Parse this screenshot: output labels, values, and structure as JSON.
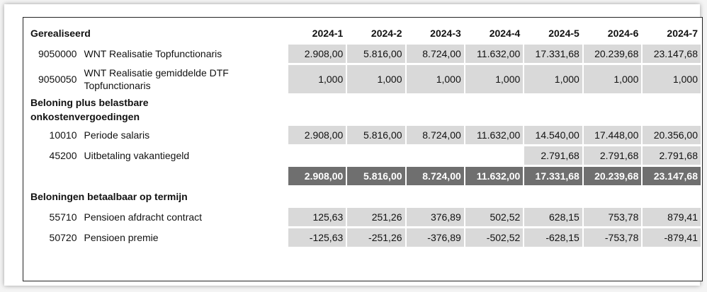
{
  "title": "Gerealiseerd",
  "periods": [
    "2024-1",
    "2024-2",
    "2024-3",
    "2024-4",
    "2024-5",
    "2024-6",
    "2024-7"
  ],
  "rows": [
    {
      "code": "9050000",
      "desc": "WNT Realisatie Topfunctionaris",
      "values": [
        "2.908,00",
        "5.816,00",
        "8.724,00",
        "11.632,00",
        "17.331,68",
        "20.239,68",
        "23.147,68"
      ]
    },
    {
      "code": "9050050",
      "desc": "WNT Realisatie gemiddelde DTF Topfunctionaris",
      "values": [
        "1,000",
        "1,000",
        "1,000",
        "1,000",
        "1,000",
        "1,000",
        "1,000"
      ]
    }
  ],
  "section1": "Beloning plus belastbare onkostenvergoedingen",
  "section1_rows": [
    {
      "code": "10010",
      "desc": "Periode salaris",
      "values": [
        "2.908,00",
        "5.816,00",
        "8.724,00",
        "11.632,00",
        "14.540,00",
        "17.448,00",
        "20.356,00"
      ]
    },
    {
      "code": "45200",
      "desc": "Uitbetaling vakantiegeld",
      "values": [
        "",
        "",
        "",
        "",
        "2.791,68",
        "2.791,68",
        "2.791,68"
      ]
    }
  ],
  "section1_totals": [
    "2.908,00",
    "5.816,00",
    "8.724,00",
    "11.632,00",
    "17.331,68",
    "20.239,68",
    "23.147,68"
  ],
  "section2": "Beloningen betaalbaar op termijn",
  "section2_rows": [
    {
      "code": "55710",
      "desc": "Pensioen afdracht contract",
      "values": [
        "125,63",
        "251,26",
        "376,89",
        "502,52",
        "628,15",
        "753,78",
        "879,41"
      ]
    },
    {
      "code": "50720",
      "desc": "Pensioen premie",
      "values": [
        "-125,63",
        "-251,26",
        "-376,89",
        "-502,52",
        "-628,15",
        "-753,78",
        "-879,41"
      ]
    }
  ]
}
